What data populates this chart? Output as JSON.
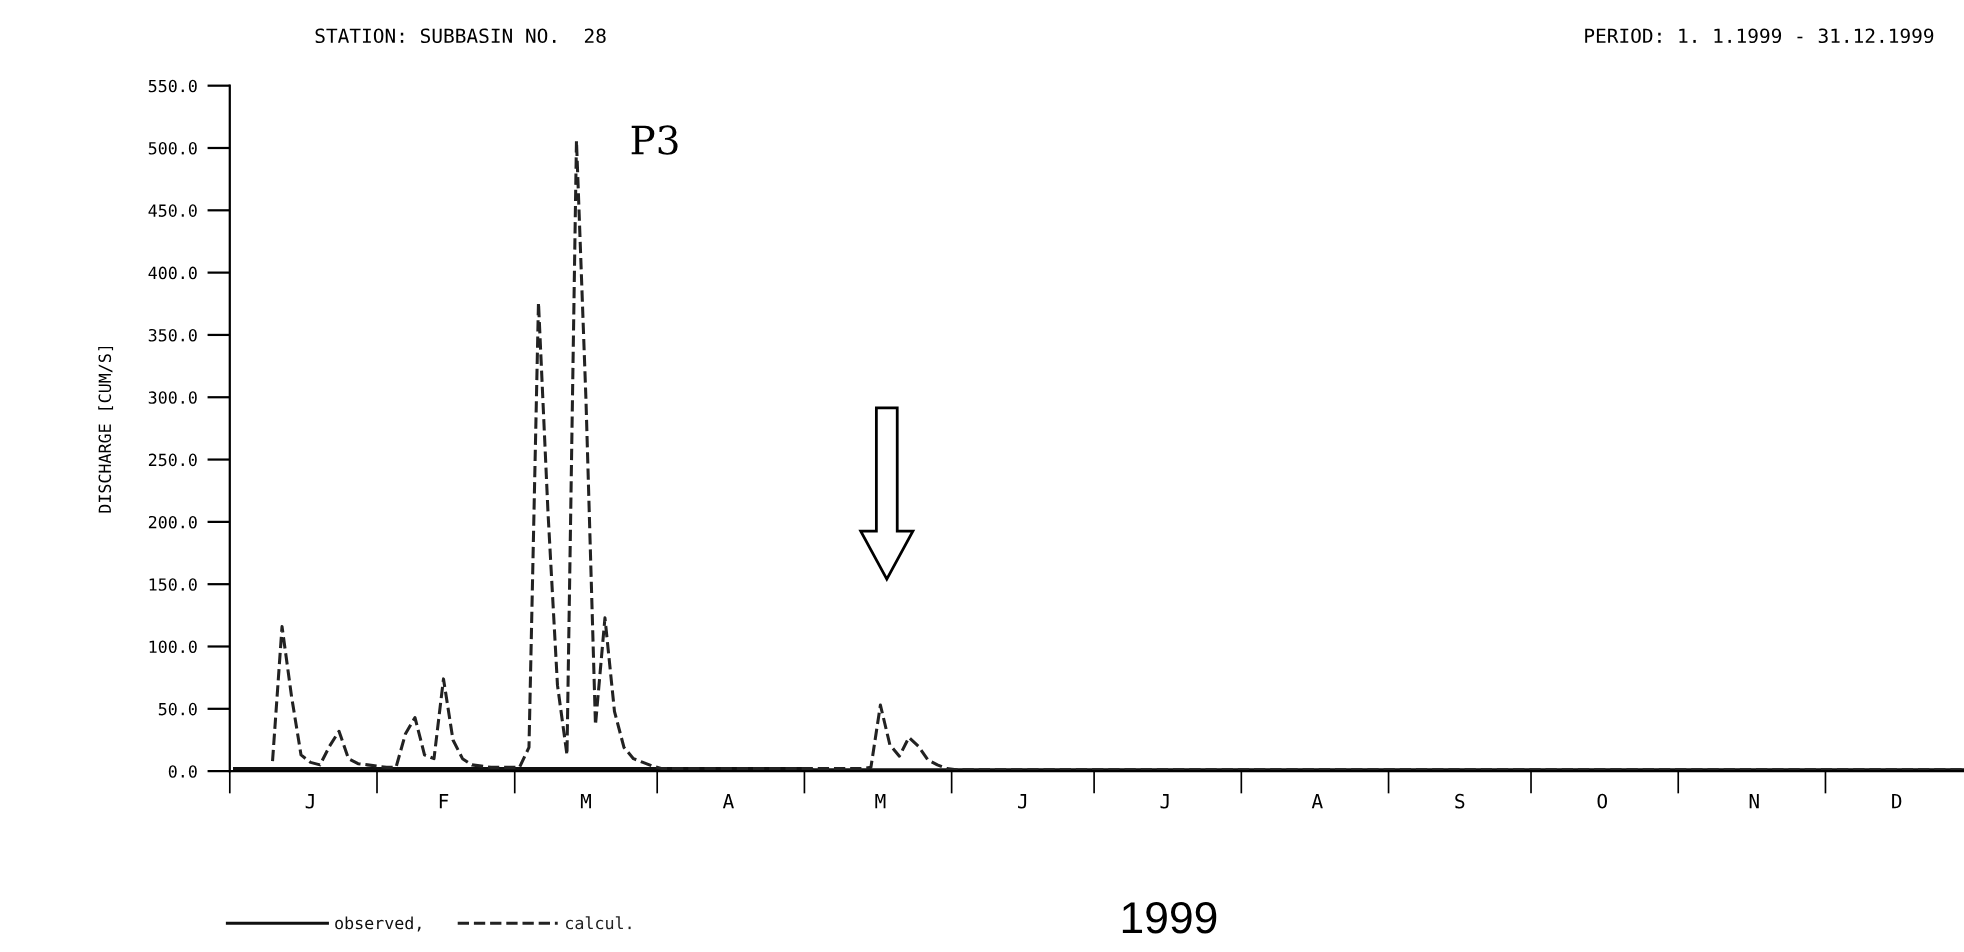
{
  "chart_data": {
    "type": "line",
    "title": "STATION: SUBBASIN NO.  28",
    "subtitle": "PERIOD: 1. 1.1999 - 31.12.1999",
    "ylabel": "DISCHARGE [CUM/S]",
    "annotations": [
      "P3",
      "1999"
    ],
    "categories": [
      null,
      null,
      null,
      null,
      null,
      null,
      null,
      null,
      "J",
      null,
      null,
      null,
      null,
      null,
      null,
      null,
      null,
      null,
      null,
      null,
      null,
      null,
      "F",
      null,
      null,
      null,
      null,
      null,
      null,
      null,
      null,
      null,
      null,
      null,
      null,
      null,
      null,
      "M",
      null,
      null,
      null,
      null,
      null,
      null,
      null,
      null,
      null,
      null,
      null,
      null,
      null,
      null,
      "A",
      null,
      null,
      null,
      null,
      null,
      null,
      null,
      null,
      null,
      null,
      null,
      null,
      null,
      null,
      null,
      "M",
      null,
      null,
      null,
      null,
      null,
      null,
      null,
      null,
      null,
      null,
      null,
      null,
      null,
      null,
      "J",
      null,
      null,
      null,
      null,
      null,
      null,
      null,
      null,
      null,
      null,
      null,
      null,
      null,
      null,
      "J",
      null,
      null,
      null,
      null,
      null,
      null,
      null,
      null,
      null,
      null,
      null,
      null,
      null,
      null,
      null,
      "A",
      null,
      null,
      null,
      null,
      null,
      null,
      null,
      null,
      null,
      null,
      null,
      null,
      null,
      null,
      "S",
      null,
      null,
      null,
      null,
      null,
      null,
      null,
      null,
      null,
      null,
      null,
      null,
      null,
      null,
      "O",
      null,
      null,
      null,
      null,
      null,
      null,
      null,
      null,
      null,
      null,
      null,
      null,
      null,
      null,
      null,
      "N",
      null,
      null,
      null,
      null,
      null,
      null,
      null,
      null,
      null,
      null,
      null,
      null,
      null,
      null,
      "D",
      null,
      null,
      null,
      null,
      null,
      null,
      null
    ],
    "ylim": [
      0,
      550
    ],
    "yticks": [
      {
        "value": 0,
        "label": "0.0"
      },
      {
        "value": 50,
        "label": "50.0"
      },
      {
        "value": 100,
        "label": "100.0"
      },
      {
        "value": 150,
        "label": "150.0"
      },
      {
        "value": 200,
        "label": "200.0"
      },
      {
        "value": 250,
        "label": "250.0"
      },
      {
        "value": 300,
        "label": "300.0"
      },
      {
        "value": 350,
        "label": "350.0"
      },
      {
        "value": 400,
        "label": "400.0"
      },
      {
        "value": 450,
        "label": "450.0"
      },
      {
        "value": 500,
        "label": "500.0"
      },
      {
        "value": 550,
        "label": "550.0"
      }
    ],
    "grid": false,
    "legend": "bottom",
    "series": [
      {
        "name": "observed,",
        "color": "#111111",
        "line_style": "solid",
        "values": [
          2,
          2,
          2,
          2,
          2,
          2,
          2,
          2,
          2,
          2,
          2,
          2,
          2,
          2,
          2,
          2,
          2,
          2,
          2,
          2,
          2,
          2,
          2,
          2,
          2,
          2,
          2,
          2,
          2,
          2,
          2,
          2,
          2,
          2,
          2,
          2,
          2,
          2,
          2,
          2,
          2,
          2,
          2,
          2,
          2,
          2,
          2,
          2,
          2,
          2,
          2,
          2,
          2,
          2,
          2,
          2,
          2,
          2,
          2,
          2,
          2,
          1,
          1,
          1,
          1,
          1,
          1,
          1,
          1,
          1,
          1,
          1,
          1,
          1,
          1,
          1,
          1,
          1,
          1,
          1,
          1,
          1,
          1,
          1,
          1,
          1,
          1,
          1,
          1,
          1,
          1,
          1,
          1,
          1,
          1,
          1,
          1,
          1,
          1,
          1,
          1,
          1,
          1,
          1,
          1,
          1,
          1,
          1,
          1,
          1,
          1,
          1,
          1,
          1,
          1,
          1,
          1,
          1,
          1,
          1,
          1,
          1,
          1,
          1,
          1,
          1,
          1,
          1,
          1,
          1,
          1,
          1,
          1,
          1,
          1,
          1,
          1,
          1,
          1,
          1,
          1,
          1,
          1,
          1,
          1,
          1,
          1,
          1,
          1,
          1,
          1,
          1,
          1,
          1,
          1,
          1,
          1,
          1,
          1,
          1,
          1,
          1,
          1,
          1,
          1,
          1,
          1,
          1,
          1,
          1,
          1,
          1,
          1,
          1,
          1,
          1,
          1,
          1,
          1,
          1,
          1,
          1,
          1
        ]
      },
      {
        "name": "calcul.",
        "color": "#222222",
        "line_style": "dashed",
        "values": [
          null,
          null,
          null,
          null,
          8,
          116,
          60,
          13,
          7,
          5,
          20,
          32,
          10,
          6,
          5,
          4,
          3,
          3,
          30,
          43,
          13,
          10,
          74,
          25,
          10,
          5,
          4,
          3,
          3,
          3,
          3,
          19,
          376,
          208,
          69,
          13,
          506,
          298,
          37,
          123,
          48,
          19,
          10,
          7,
          4,
          2,
          2,
          2,
          2,
          2,
          2,
          2,
          2,
          2,
          2,
          2,
          2,
          2,
          2,
          2,
          2,
          2,
          2,
          2,
          2,
          2,
          2,
          3,
          53,
          21,
          12,
          27,
          20,
          9,
          5,
          2,
          1,
          1,
          1,
          1,
          1,
          1,
          1,
          1,
          1,
          1,
          1,
          1,
          1,
          1,
          1,
          1,
          1,
          1,
          1,
          1,
          1,
          1,
          1,
          1,
          1,
          1,
          1,
          1,
          1,
          1,
          1,
          1,
          1,
          1,
          1,
          1,
          1,
          1,
          1,
          1,
          1,
          1,
          1,
          1,
          1,
          1,
          1,
          1,
          1,
          1,
          1,
          1,
          1,
          1,
          1,
          1,
          1,
          1,
          1,
          1,
          1,
          1,
          1,
          1,
          1,
          1,
          1,
          1,
          1,
          1,
          1,
          1,
          1,
          1,
          1,
          1,
          1,
          1,
          1,
          1,
          1,
          1,
          1,
          1,
          1,
          1,
          1,
          1,
          1,
          1,
          1,
          1,
          1,
          1,
          1,
          1,
          1,
          1,
          1,
          1,
          1,
          1,
          1,
          1,
          1,
          1,
          1
        ]
      }
    ]
  }
}
